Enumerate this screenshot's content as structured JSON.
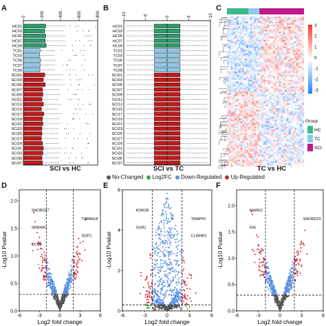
{
  "panels": {
    "A": {
      "label": "A",
      "caption": "SCI vs HC"
    },
    "B": {
      "label": "B",
      "caption": "SCI vs TC"
    },
    "C": {
      "label": "C",
      "caption": "TC vs HC"
    },
    "D": {
      "label": "D"
    },
    "E": {
      "label": "E"
    },
    "F": {
      "label": "F"
    }
  },
  "sample_labels": [
    "HC01",
    "HC03",
    "HC05",
    "HC07",
    "HC09",
    "TC01",
    "TC03",
    "TC05",
    "TC07",
    "TC09",
    "SCI01",
    "SCI03",
    "SCI05",
    "SCI07",
    "SCI09",
    "SCI11",
    "SCI13",
    "SCI15",
    "SCI17",
    "SCI19",
    "SCI21",
    "SCI23",
    "SCI25",
    "SCI27",
    "SCI29",
    "SCI31",
    "SCI33",
    "SCI35",
    "SCI37"
  ],
  "heatmap_legend": {
    "scale_ticks": [
      "3",
      "2",
      "1",
      "0",
      "-1",
      "-2",
      "-3"
    ],
    "group_title": "Group",
    "groups": [
      {
        "name": "HC",
        "color": "#3cb88c"
      },
      {
        "name": "TC",
        "color": "#8ecbe6"
      },
      {
        "name": "SCI",
        "color": "#c0198c"
      }
    ]
  },
  "volcano_legend": [
    {
      "name": "No-Changed",
      "color": "#555555"
    },
    {
      "name": "Log2FC",
      "color": "#3aa83a"
    },
    {
      "name": "Down-Regulated",
      "color": "#5b8fe0"
    },
    {
      "name": "Up-Regulated",
      "color": "#d2222d"
    }
  ],
  "axes": {
    "volcano_xlabel": "Log2 fold change",
    "volcano_ylabel": "-Log10 Pvalue"
  },
  "colors": {
    "hc": "#2e9e6e",
    "tc": "#8ec8e8",
    "sci": "#c0191b",
    "nochange": "#555555",
    "log2fc": "#3aa83a",
    "down": "#5b8fe0",
    "up": "#d2222d"
  },
  "chart_data": [
    {
      "type": "bar",
      "panel": "A",
      "orientation": "horizontal",
      "xlim": [
        0,
        800
      ],
      "xticks": [
        "0",
        "200",
        "400",
        "600",
        "800"
      ],
      "categories": [
        "HC01",
        "HC03",
        "HC05",
        "HC07",
        "HC09",
        "TC01",
        "TC03",
        "TC05",
        "TC07",
        "TC09",
        "SCI01",
        "SCI03",
        "SCI05",
        "SCI07",
        "SCI09",
        "SCI11",
        "SCI13",
        "SCI15",
        "SCI17",
        "SCI19",
        "SCI21",
        "SCI23",
        "SCI25",
        "SCI27",
        "SCI29",
        "SCI31",
        "SCI33",
        "SCI35",
        "SCI37"
      ],
      "values": [
        240,
        230,
        240,
        235,
        245,
        180,
        175,
        185,
        180,
        178,
        230,
        215,
        235,
        205,
        210,
        200,
        215,
        195,
        220,
        205,
        210,
        200,
        200,
        195,
        205,
        215,
        210,
        200,
        205
      ]
    },
    {
      "type": "bar",
      "panel": "B",
      "orientation": "horizontal",
      "xlim": [
        -10,
        10
      ],
      "xticks": [
        "-10",
        "-5",
        "0",
        "5",
        "10"
      ],
      "categories": [
        "HC01",
        "HC03",
        "HC05",
        "HC07",
        "HC09",
        "TC01",
        "TC03",
        "TC05",
        "TC07",
        "TC09",
        "SCI01",
        "SCI03",
        "SCI05",
        "SCI07",
        "SCI09",
        "SCI11",
        "SCI13",
        "SCI15",
        "SCI17",
        "SCI19",
        "SCI21",
        "SCI23",
        "SCI25",
        "SCI27",
        "SCI29",
        "SCI31",
        "SCI33",
        "SCI35",
        "SCI37"
      ],
      "low": -3,
      "high": 3
    },
    {
      "type": "scatter",
      "panel": "D",
      "xlim": [
        -6,
        6
      ],
      "xticks": [
        "-6",
        "-3",
        "0",
        "3",
        "6"
      ],
      "ylim": [
        0,
        2.2
      ],
      "yticks": [
        "0.0",
        "0.5",
        "1.0",
        "1.5",
        "2.0"
      ],
      "threshold_x": [
        -2,
        2
      ],
      "threshold_y": 0.3,
      "labels": [
        "SNORD97",
        "TSPAN18",
        "SLIBNR1",
        "GDF2",
        "CCN5"
      ]
    },
    {
      "type": "scatter",
      "panel": "E",
      "xlim": [
        -6,
        6
      ],
      "xticks": [
        "-6",
        "-3",
        "0",
        "3",
        "6"
      ],
      "ylim": [
        0,
        6
      ],
      "yticks": [
        "0",
        "2",
        "4",
        "6"
      ],
      "threshold_x": [
        -2,
        2
      ],
      "threshold_y": 0.3,
      "labels": [
        "KDM1B",
        "TRAPPC",
        "GSR1",
        "CLIBNR1"
      ]
    },
    {
      "type": "scatter",
      "panel": "F",
      "xlim": [
        -6,
        6
      ],
      "xticks": [
        "-6",
        "-3",
        "0",
        "3",
        "6"
      ],
      "ylim": [
        0,
        2.3
      ],
      "yticks": [
        "0.0",
        "0.5",
        "1.0",
        "1.5",
        "2.0"
      ],
      "threshold_x": [
        -2,
        2
      ],
      "threshold_y": 0.3,
      "labels": [
        "MARK2",
        "SNORD23",
        "IGK"
      ]
    }
  ]
}
